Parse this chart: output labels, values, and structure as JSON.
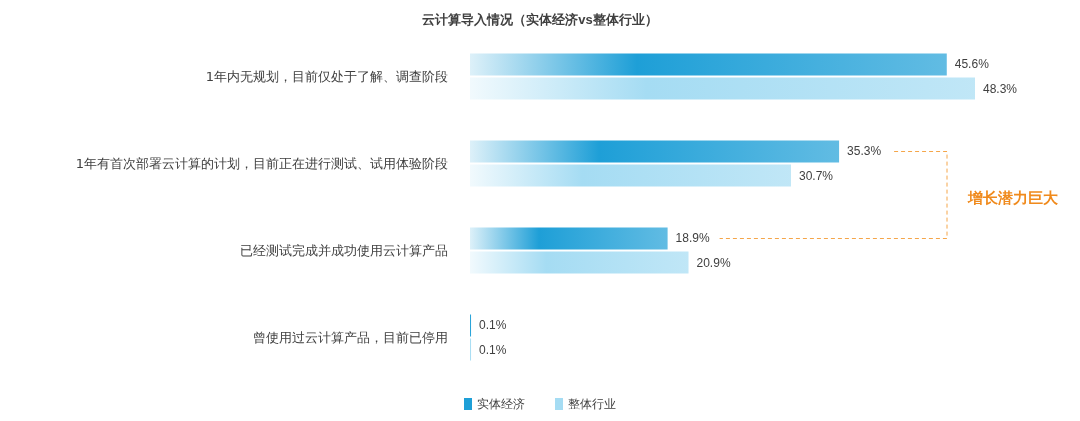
{
  "chart_data": {
    "type": "bar",
    "orientation": "horizontal",
    "title": "云计算导入情况（实体经济vs整体行业）",
    "categories": [
      "1年内无规划，目前仅处于了解、调查阶段",
      "1年有首次部署云计算的计划，目前正在进行测试、试用体验阶段",
      "已经测试完成并成功使用云计算产品",
      "曾使用过云计算产品，目前已停用"
    ],
    "series": [
      {
        "name": "实体经济",
        "color": "#1e9fd7",
        "values": [
          45.6,
          35.3,
          18.9,
          0.1
        ],
        "value_labels": [
          "45.6%",
          "35.3%",
          "18.9%",
          "0.1%"
        ]
      },
      {
        "name": "整体行业",
        "color": "#a5dcf3",
        "values": [
          48.3,
          30.7,
          20.9,
          0.1
        ],
        "value_labels": [
          "48.3%",
          "30.7%",
          "20.9%",
          "0.1%"
        ]
      }
    ],
    "annotations": [
      "增长潜力巨大"
    ],
    "legend": "bottom",
    "grid": false
  }
}
